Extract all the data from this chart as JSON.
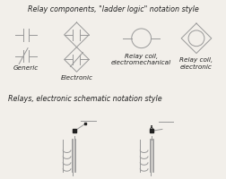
{
  "title1": "Relay components, \"ladder logic\" notation style",
  "title2": "Relays, electronic schematic notation style",
  "bg_color": "#f2efea",
  "line_color": "#999999",
  "dark_color": "#222222",
  "labels": {
    "generic": "Generic",
    "electronic": "Electronic",
    "coil_em": "Relay coil,\nelectromechanical",
    "coil_e": "Relay coil,\nelectronic"
  },
  "font_size_title": 5.8,
  "font_size_label": 5.2
}
